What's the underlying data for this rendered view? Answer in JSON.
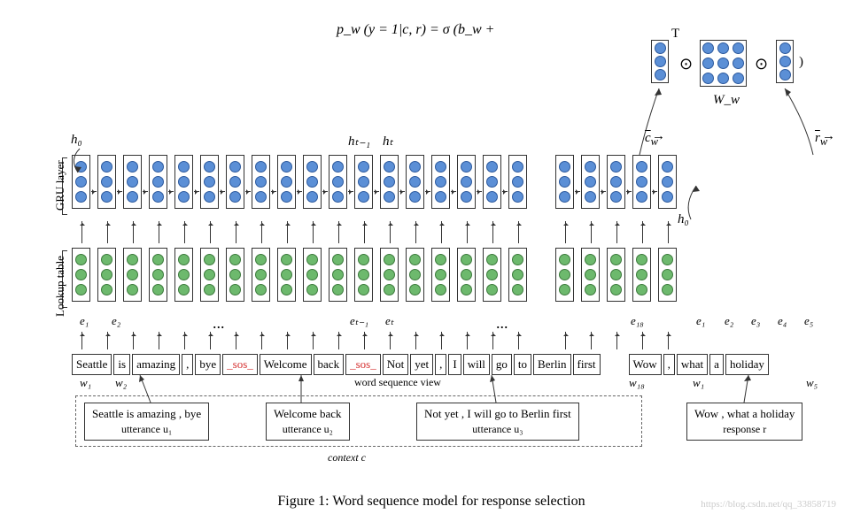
{
  "colors": {
    "blue_fill": "#5b8fd6",
    "blue_border": "#2d5a9e",
    "green_fill": "#6db96d",
    "green_border": "#3d7a3d",
    "red_text": "#d63333"
  },
  "equation": {
    "text": "p_w (y = 1|c, r) = σ (b_w +",
    "T_label": "T",
    "close_paren": ")",
    "Ww_label": "W_w",
    "cw_label": "c_w",
    "rw_label": "r_w",
    "odot": "⊙"
  },
  "axis": {
    "gru": "GRU layer",
    "lookup": "Lookup table"
  },
  "h_labels": {
    "h0": "h₀",
    "ht_1": "hₜ₋₁",
    "ht": "hₜ",
    "h0_r": "h₀"
  },
  "context_words": [
    "Seattle",
    "is",
    "amazing",
    ",",
    "bye",
    "_sos_",
    "Welcome",
    "back",
    "_sos_",
    "Not",
    "yet",
    ",",
    "I",
    "will",
    "go",
    "to",
    "Berlin",
    "first"
  ],
  "response_words": [
    "Wow",
    ",",
    "what",
    "a",
    "holiday"
  ],
  "e_labels": {
    "e1": "e₁",
    "e2": "e₂",
    "et_1": "eₜ₋₁",
    "et": "eₜ",
    "e18": "e₁₈",
    "re1": "e₁",
    "re2": "e₂",
    "re3": "e₃",
    "re4": "e₄",
    "re5": "e₅"
  },
  "w_labels": {
    "w1": "w₁",
    "w2": "w₂",
    "w18": "w₁₈",
    "rw1": "w₁",
    "rw5": "w₅"
  },
  "ellipsis": "...",
  "wsv": "word sequence view",
  "utterances": {
    "u1": {
      "text": "Seattle is amazing , bye",
      "label": "utterance u₁"
    },
    "u2": {
      "text": "Welcome back",
      "label": "utterance u₂"
    },
    "u3": {
      "text": "Not yet , I will go to Berlin first",
      "label": "utterance u₃"
    },
    "r": {
      "text": "Wow , what a holiday",
      "label": "response  r"
    }
  },
  "context_label": "context c",
  "caption": "Figure 1: Word sequence model for response selection",
  "watermark": "https://blog.csdn.net/qq_33858719",
  "counts": {
    "context_cells": 18,
    "response_cells": 5,
    "dots_per_cell": 3,
    "matrix": 3
  }
}
